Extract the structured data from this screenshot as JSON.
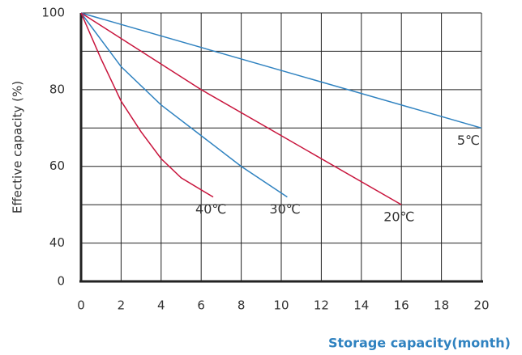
{
  "chart_data": {
    "type": "line",
    "y_label": "Effective capacity   (%)",
    "x_label": "Storage capacity(month)",
    "xlim": [
      0,
      20
    ],
    "xticks": [
      0,
      2,
      4,
      6,
      8,
      10,
      12,
      14,
      16,
      18,
      20
    ],
    "ylim": [
      30,
      100
    ],
    "yticks": [
      40,
      60,
      80,
      100
    ],
    "y_origin_label": "0",
    "ygrid": [
      40,
      50,
      60,
      70,
      80,
      90,
      100
    ],
    "series": [
      {
        "name": "5℃",
        "color": "#2f82c0",
        "x": [
          0,
          20
        ],
        "values": [
          100,
          70
        ]
      },
      {
        "name": "20℃",
        "color": "#c8143c",
        "x": [
          0,
          6,
          10,
          16
        ],
        "values": [
          100,
          80,
          68,
          50
        ]
      },
      {
        "name": "30℃",
        "color": "#2f82c0",
        "x": [
          0,
          2,
          4,
          6,
          8,
          10.3
        ],
        "values": [
          100,
          86,
          76,
          68,
          60,
          52
        ]
      },
      {
        "name": "40℃",
        "color": "#c8143c",
        "x": [
          0,
          1,
          2,
          3,
          4,
          5,
          6.6
        ],
        "values": [
          100,
          88,
          77,
          69,
          62,
          57,
          52
        ]
      }
    ]
  }
}
